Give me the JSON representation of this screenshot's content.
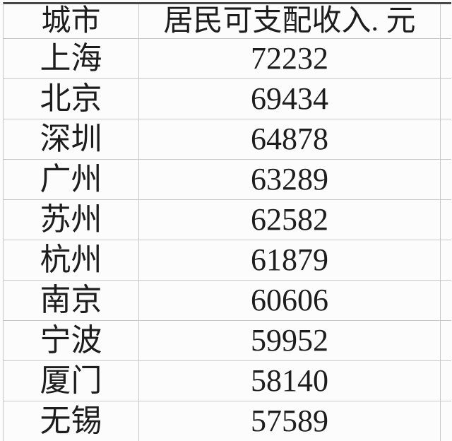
{
  "table": {
    "columns": [
      "城市",
      "居民可支配收入. 元"
    ],
    "rows": [
      {
        "city": "上海",
        "income": "72232"
      },
      {
        "city": "北京",
        "income": "69434"
      },
      {
        "city": "深圳",
        "income": "64878"
      },
      {
        "city": "广州",
        "income": "63289"
      },
      {
        "city": "苏州",
        "income": "62582"
      },
      {
        "city": "杭州",
        "income": "61879"
      },
      {
        "city": "南京",
        "income": "60606"
      },
      {
        "city": "宁波",
        "income": "59952"
      },
      {
        "city": "厦门",
        "income": "58140"
      },
      {
        "city": "无锡",
        "income": "57589"
      }
    ]
  },
  "chart_data": {
    "type": "table",
    "categories": [
      "上海",
      "北京",
      "深圳",
      "广州",
      "苏州",
      "杭州",
      "南京",
      "宁波",
      "厦门",
      "无锡"
    ],
    "values": [
      72232,
      69434,
      64878,
      63289,
      62582,
      61879,
      60606,
      59952,
      58140,
      57589
    ],
    "title": "",
    "xlabel": "城市",
    "ylabel": "居民可支配收入. 元",
    "legend": "none",
    "grid": "on"
  },
  "colors": {
    "background": "#fcfcfc",
    "grid_line": "#c8c8c8",
    "top_border": "#484848",
    "text": "#1d1d1d"
  }
}
